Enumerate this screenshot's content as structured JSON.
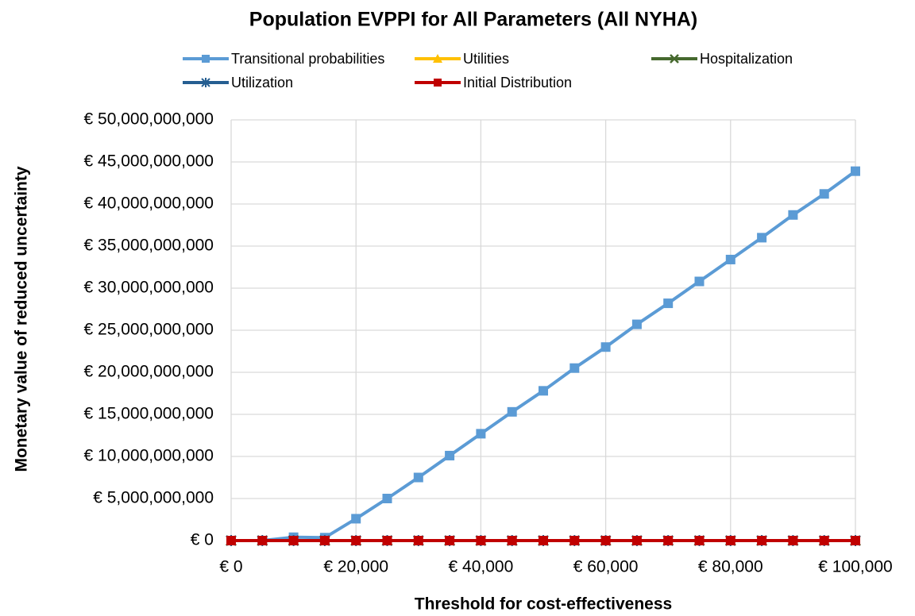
{
  "chart_data": {
    "type": "line",
    "title": "Population EVPPI for All Parameters (All NYHA)",
    "xlabel": "Threshold for cost-effectiveness",
    "ylabel": "Monetary value of reduced uncertainty",
    "x": [
      0,
      5000,
      10000,
      15000,
      20000,
      25000,
      30000,
      35000,
      40000,
      45000,
      50000,
      55000,
      60000,
      65000,
      70000,
      75000,
      80000,
      85000,
      90000,
      95000,
      100000
    ],
    "series": [
      {
        "name": "Transitional probabilities",
        "color": "#5b9bd5",
        "marker": "square",
        "values": [
          0,
          0,
          400000000,
          350000000,
          2600000000,
          5000000000,
          7500000000,
          10100000000,
          12700000000,
          15300000000,
          17800000000,
          20500000000,
          23000000000,
          25700000000,
          28200000000,
          30800000000,
          33400000000,
          36000000000,
          38700000000,
          41200000000,
          43900000000
        ]
      },
      {
        "name": "Utilities",
        "color": "#ffc000",
        "marker": "triangle",
        "values": [
          0,
          0,
          0,
          0,
          0,
          0,
          0,
          0,
          0,
          0,
          0,
          0,
          0,
          0,
          0,
          0,
          0,
          0,
          0,
          0,
          0
        ]
      },
      {
        "name": "Hospitalization",
        "color": "#46692e",
        "marker": "x",
        "values": [
          0,
          0,
          0,
          0,
          0,
          0,
          0,
          0,
          0,
          0,
          0,
          0,
          0,
          0,
          0,
          0,
          0,
          0,
          0,
          0,
          0
        ]
      },
      {
        "name": "Utilization",
        "color": "#255e91",
        "marker": "star",
        "values": [
          0,
          0,
          0,
          0,
          0,
          0,
          0,
          0,
          0,
          0,
          0,
          0,
          0,
          0,
          0,
          0,
          0,
          0,
          0,
          0,
          0
        ]
      },
      {
        "name": "Initial Distribution",
        "color": "#c00000",
        "marker": "square",
        "values": [
          0,
          0,
          0,
          0,
          0,
          0,
          0,
          0,
          0,
          0,
          0,
          0,
          0,
          0,
          0,
          0,
          0,
          0,
          0,
          0,
          0
        ]
      }
    ],
    "xlim": [
      0,
      100000
    ],
    "xticks": [
      {
        "value": 0,
        "label": "€ 0"
      },
      {
        "value": 20000,
        "label": "€ 20,000"
      },
      {
        "value": 40000,
        "label": "€ 40,000"
      },
      {
        "value": 60000,
        "label": "€ 60,000"
      },
      {
        "value": 80000,
        "label": "€ 80,000"
      },
      {
        "value": 100000,
        "label": "€ 100,000"
      }
    ],
    "ylim": [
      0,
      50000000000
    ],
    "yticks": [
      {
        "value": 0,
        "label": "€ 0"
      },
      {
        "value": 5000000000,
        "label": "€ 5,000,000,000"
      },
      {
        "value": 10000000000,
        "label": "€ 10,000,000,000"
      },
      {
        "value": 15000000000,
        "label": "€ 15,000,000,000"
      },
      {
        "value": 20000000000,
        "label": "€ 20,000,000,000"
      },
      {
        "value": 25000000000,
        "label": "€ 25,000,000,000"
      },
      {
        "value": 30000000000,
        "label": "€ 30,000,000,000"
      },
      {
        "value": 35000000000,
        "label": "€ 35,000,000,000"
      },
      {
        "value": 40000000000,
        "label": "€ 40,000,000,000"
      },
      {
        "value": 45000000000,
        "label": "€ 45,000,000,000"
      },
      {
        "value": 50000000000,
        "label": "€ 50,000,000,000"
      }
    ],
    "grid": true,
    "legend": "top"
  }
}
